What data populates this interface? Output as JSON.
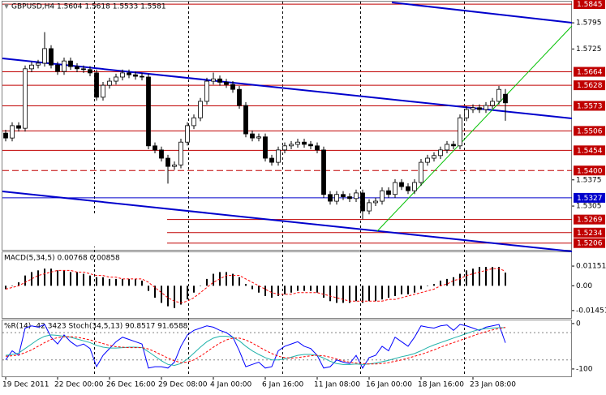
{
  "chart_data": [
    {
      "type": "candlestick",
      "title": "GBPUSD,H4  1.5604 1.5618 1.5533 1.5581",
      "categories": [
        "19 Dec 2011",
        null,
        null,
        null,
        null,
        null,
        null,
        null,
        "22 Dec 00:00",
        null,
        null,
        null,
        null,
        null,
        null,
        null,
        "26 Dec 16:00",
        null,
        null,
        null,
        null,
        null,
        null,
        null,
        "29 Dec 08:00",
        null,
        null,
        null,
        null,
        null,
        null,
        null,
        "4 Jan 00:00",
        null,
        null,
        null,
        null,
        null,
        null,
        null,
        "6 Jan 16:00",
        null,
        null,
        null,
        null,
        null,
        null,
        null,
        "11 Jan 08:00",
        null,
        null,
        null,
        null,
        null,
        null,
        null,
        "16 Jan 00:00",
        null,
        null,
        null,
        null,
        null,
        null,
        null,
        "18 Jan 16:00",
        null,
        null,
        null,
        null,
        null,
        null,
        null,
        "23 Jan 08:00",
        null,
        null,
        null,
        null,
        null
      ],
      "open": [
        1.55,
        1.5487,
        1.552,
        1.5513,
        1.5672,
        1.5682,
        1.5687,
        1.5726,
        1.5682,
        1.5665,
        1.5693,
        1.5678,
        1.5672,
        1.567,
        1.5661,
        1.5596,
        1.5628,
        1.5639,
        1.565,
        1.5661,
        1.5656,
        1.5652,
        1.565,
        1.5466,
        1.5455,
        1.5433,
        1.5411,
        1.5415,
        1.5476,
        1.552,
        1.5541,
        1.5585,
        1.5639,
        1.5645,
        1.5636,
        1.563,
        1.5617,
        1.5574,
        1.5498,
        1.5487,
        1.549,
        1.5433,
        1.5422,
        1.5455,
        1.5466,
        1.547,
        1.5476,
        1.547,
        1.5466,
        1.5455,
        1.5336,
        1.5318,
        1.5336,
        1.533,
        1.5325,
        1.534,
        1.5292,
        1.5314,
        1.5318,
        1.5346,
        1.5336,
        1.5368,
        1.5357,
        1.5346,
        1.5368,
        1.5422,
        1.5433,
        1.544,
        1.5455,
        1.547,
        1.5466,
        1.5541,
        1.5563,
        1.5568,
        1.5563,
        1.5574,
        1.5585,
        1.5604
      ],
      "high": [
        1.5509,
        1.5529,
        1.5529,
        1.5681,
        1.5691,
        1.5696,
        1.577,
        1.5735,
        1.5691,
        1.5702,
        1.5702,
        1.5687,
        1.5681,
        1.5679,
        1.567,
        1.5637,
        1.5648,
        1.5659,
        1.567,
        1.567,
        1.5665,
        1.5661,
        1.5659,
        1.5475,
        1.5464,
        1.5442,
        1.5424,
        1.5485,
        1.5529,
        1.555,
        1.5594,
        1.5648,
        1.5662,
        1.5654,
        1.5645,
        1.5639,
        1.5626,
        1.5583,
        1.5507,
        1.5499,
        1.5499,
        1.5442,
        1.5464,
        1.5475,
        1.5479,
        1.5485,
        1.5485,
        1.5479,
        1.5475,
        1.5464,
        1.5345,
        1.5345,
        1.5345,
        1.5339,
        1.5349,
        1.5349,
        1.5323,
        1.5327,
        1.5355,
        1.5355,
        1.5377,
        1.5377,
        1.5366,
        1.5377,
        1.5431,
        1.5442,
        1.5449,
        1.5464,
        1.5479,
        1.5479,
        1.555,
        1.5572,
        1.5577,
        1.5577,
        1.5583,
        1.5594,
        1.5626,
        1.5618
      ],
      "low": [
        1.5478,
        1.5478,
        1.5504,
        1.5504,
        1.5663,
        1.5673,
        1.5678,
        1.5673,
        1.5656,
        1.5656,
        1.5669,
        1.5663,
        1.5661,
        1.5652,
        1.5587,
        1.5587,
        1.5619,
        1.563,
        1.5641,
        1.5647,
        1.5643,
        1.5641,
        1.5457,
        1.5446,
        1.5424,
        1.5365,
        1.5402,
        1.5406,
        1.5467,
        1.5511,
        1.5532,
        1.5576,
        1.563,
        1.5627,
        1.5621,
        1.5608,
        1.5565,
        1.5489,
        1.5478,
        1.5478,
        1.5424,
        1.5413,
        1.5413,
        1.5446,
        1.5457,
        1.5461,
        1.5461,
        1.5457,
        1.5446,
        1.5327,
        1.5309,
        1.5309,
        1.5321,
        1.5316,
        1.5316,
        1.527,
        1.5283,
        1.5305,
        1.5309,
        1.5327,
        1.5327,
        1.5348,
        1.5337,
        1.5337,
        1.5359,
        1.5413,
        1.5424,
        1.5431,
        1.5446,
        1.5457,
        1.5457,
        1.5532,
        1.5554,
        1.5554,
        1.5554,
        1.5565,
        1.5576,
        1.5533
      ],
      "close": [
        1.5487,
        1.552,
        1.5513,
        1.5672,
        1.5682,
        1.5687,
        1.5726,
        1.5682,
        1.5665,
        1.5693,
        1.5678,
        1.5672,
        1.567,
        1.5661,
        1.5596,
        1.5628,
        1.5639,
        1.565,
        1.5661,
        1.5656,
        1.5652,
        1.565,
        1.5466,
        1.5455,
        1.5433,
        1.5411,
        1.5415,
        1.5476,
        1.552,
        1.5541,
        1.5585,
        1.5639,
        1.5645,
        1.5636,
        1.563,
        1.5617,
        1.5574,
        1.5498,
        1.5487,
        1.549,
        1.5433,
        1.5422,
        1.5455,
        1.5466,
        1.547,
        1.5476,
        1.547,
        1.5466,
        1.5455,
        1.5336,
        1.5318,
        1.5336,
        1.533,
        1.5325,
        1.534,
        1.5292,
        1.5314,
        1.5318,
        1.5346,
        1.5336,
        1.5368,
        1.5357,
        1.5346,
        1.5368,
        1.5422,
        1.5433,
        1.544,
        1.5455,
        1.547,
        1.5466,
        1.5541,
        1.5563,
        1.5568,
        1.5563,
        1.5574,
        1.5585,
        1.5617,
        1.5581
      ],
      "up_color": "#ffffff",
      "down_color": "#000000",
      "line_color": "#000000",
      "ylim": [
        1.5188,
        1.5856
      ],
      "yticks": [
        1.5795,
        1.5725,
        1.5375,
        1.5305
      ],
      "levels": [
        {
          "value": 1.5845,
          "color": "#c00000"
        },
        {
          "value": 1.5664,
          "color": "#c00000"
        },
        {
          "value": 1.5628,
          "color": "#c00000"
        },
        {
          "value": 1.5573,
          "color": "#c00000"
        },
        {
          "value": 1.5506,
          "color": "#c00000"
        },
        {
          "value": 1.5454,
          "color": "#c00000"
        },
        {
          "value": 1.54,
          "label": "1.5400",
          "color": "#c00000",
          "dashed": true
        },
        {
          "value": 1.5327,
          "color": "#0000cc"
        },
        {
          "value": 1.5269,
          "color": "#c00000"
        },
        {
          "value": 1.5234,
          "color": "#c00000"
        },
        {
          "value": 1.5206,
          "color": "#c00000"
        }
      ]
    },
    {
      "type": "bar",
      "title": "MACD(5,34,5) 0.00768 0.00858",
      "color": "#000000",
      "values": [
        -0.002,
        0.0,
        0.002,
        0.006,
        0.008,
        0.009,
        0.01,
        0.01,
        0.009,
        0.009,
        0.008,
        0.008,
        0.007,
        0.006,
        0.005,
        0.005,
        0.004,
        0.004,
        0.004,
        0.004,
        0.004,
        0.003,
        -0.003,
        -0.007,
        -0.01,
        -0.012,
        -0.013,
        -0.011,
        -0.008,
        -0.004,
        0.0,
        0.004,
        0.007,
        0.008,
        0.008,
        0.007,
        0.005,
        0.001,
        -0.002,
        -0.004,
        -0.006,
        -0.007,
        -0.006,
        -0.005,
        -0.004,
        -0.003,
        -0.003,
        -0.003,
        -0.004,
        -0.007,
        -0.009,
        -0.01,
        -0.01,
        -0.01,
        -0.009,
        -0.01,
        -0.009,
        -0.009,
        -0.008,
        -0.007,
        -0.006,
        -0.005,
        -0.005,
        -0.004,
        -0.002,
        0.0,
        0.001,
        0.003,
        0.004,
        0.005,
        0.007,
        0.009,
        0.01,
        0.011,
        0.011,
        0.011,
        0.011,
        0.00768
      ],
      "signal": {
        "color": "#ff0000",
        "dashed": true,
        "values": [
          -0.002,
          -0.001,
          0.0,
          0.002,
          0.004,
          0.006,
          0.007,
          0.008,
          0.009,
          0.009,
          0.009,
          0.008,
          0.008,
          0.007,
          0.006,
          0.006,
          0.005,
          0.005,
          0.004,
          0.004,
          0.004,
          0.004,
          0.002,
          -0.001,
          -0.004,
          -0.007,
          -0.009,
          -0.01,
          -0.009,
          -0.007,
          -0.004,
          -0.001,
          0.002,
          0.004,
          0.006,
          0.006,
          0.006,
          0.004,
          0.002,
          0.0,
          -0.002,
          -0.004,
          -0.005,
          -0.005,
          -0.005,
          -0.004,
          -0.004,
          -0.004,
          -0.004,
          -0.005,
          -0.006,
          -0.007,
          -0.008,
          -0.009,
          -0.009,
          -0.009,
          -0.009,
          -0.009,
          -0.009,
          -0.008,
          -0.008,
          -0.007,
          -0.006,
          -0.005,
          -0.004,
          -0.003,
          -0.002,
          0.0,
          0.001,
          0.003,
          0.004,
          0.006,
          0.007,
          0.008,
          0.009,
          0.01,
          0.01,
          0.00858
        ]
      },
      "ylim": [
        -0.0193,
        0.0196
      ],
      "yticks": [
        0.01151,
        {
          "value": 0,
          "label": "0.00"
        },
        -0.01451
      ]
    },
    {
      "type": "line",
      "title": "%R(14) -42.3423  Stoch(34,5,13) 90.8517 91.6588",
      "ylim": [
        -118,
        7
      ],
      "yticks": [
        0,
        -100
      ],
      "y2lim": [
        -18,
        107
      ],
      "levels": [
        -20,
        -80
      ],
      "series": [
        {
          "color": "#0000ff",
          "values": [
            -80,
            -60,
            -70,
            -10,
            -5,
            -8,
            -2,
            -30,
            -45,
            -25,
            -40,
            -50,
            -45,
            -55,
            -95,
            -70,
            -55,
            -40,
            -30,
            -35,
            -40,
            -45,
            -98,
            -95,
            -95,
            -98,
            -85,
            -50,
            -25,
            -15,
            -10,
            -5,
            -8,
            -15,
            -20,
            -30,
            -60,
            -95,
            -90,
            -85,
            -98,
            -95,
            -60,
            -50,
            -45,
            -40,
            -50,
            -55,
            -70,
            -98,
            -95,
            -80,
            -85,
            -88,
            -70,
            -98,
            -75,
            -70,
            -50,
            -60,
            -30,
            -40,
            -50,
            -30,
            -5,
            -8,
            -10,
            -5,
            -3,
            -15,
            -2,
            -5,
            -10,
            -15,
            -8,
            -5,
            -2,
            -42.3423
          ]
        },
        {
          "color": "#20b2aa",
          "axis": "y2",
          "values": [
            30,
            32,
            35,
            45,
            55,
            65,
            72,
            75,
            74,
            72,
            70,
            66,
            62,
            58,
            52,
            48,
            46,
            46,
            47,
            48,
            48,
            47,
            38,
            28,
            18,
            10,
            8,
            12,
            22,
            35,
            48,
            60,
            68,
            72,
            72,
            70,
            62,
            50,
            40,
            32,
            25,
            20,
            20,
            22,
            26,
            30,
            32,
            32,
            30,
            24,
            17,
            12,
            10,
            10,
            11,
            10,
            11,
            13,
            16,
            19,
            23,
            27,
            30,
            34,
            40,
            47,
            53,
            58,
            63,
            68,
            73,
            78,
            83,
            87,
            89,
            90,
            91,
            90.8517
          ]
        },
        {
          "color": "#ff0000",
          "axis": "y2",
          "dashed": true,
          "values": [
            28,
            29,
            31,
            36,
            42,
            50,
            58,
            65,
            69,
            71,
            71,
            70,
            67,
            64,
            60,
            56,
            52,
            49,
            48,
            47,
            47,
            47,
            44,
            38,
            31,
            24,
            18,
            14,
            15,
            20,
            28,
            38,
            48,
            57,
            64,
            68,
            68,
            64,
            57,
            49,
            41,
            34,
            28,
            25,
            24,
            25,
            27,
            29,
            30,
            29,
            26,
            22,
            18,
            15,
            13,
            12,
            11,
            11,
            12,
            14,
            17,
            20,
            24,
            28,
            32,
            37,
            42,
            48,
            53,
            58,
            63,
            68,
            73,
            78,
            82,
            86,
            89,
            91.6588
          ]
        }
      ]
    }
  ]
}
